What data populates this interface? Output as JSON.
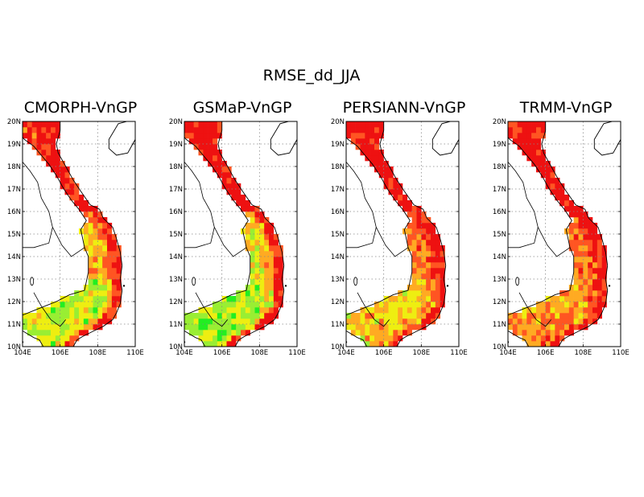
{
  "title": "RMSE_dd_JJA",
  "colors": {
    "low": "#22ee22",
    "low_mid": "#99ee33",
    "mid": "#eeee11",
    "mid_high": "#ffaa22",
    "high": "#ff5522",
    "very_high": "#ee1111",
    "coastline": "#000000",
    "grid": "#888888"
  },
  "axes": {
    "x_ticks": [
      "104E",
      "106E",
      "108E",
      "110E"
    ],
    "y_ticks": [
      "10N",
      "11N",
      "12N",
      "13N",
      "14N",
      "15N",
      "16N",
      "17N",
      "18N",
      "19N",
      "20N"
    ],
    "lon_range": [
      104,
      110
    ],
    "lat_range": [
      10,
      20
    ]
  },
  "panels": [
    {
      "title": "CMORPH-VnGP",
      "south_level": 1.5,
      "central_level": 2.6,
      "north_level": 4.4,
      "coast_level": 4.7
    },
    {
      "title": "GSMaP-VnGP",
      "south_level": 1.2,
      "central_level": 2.2,
      "north_level": 4.8,
      "coast_level": 5.0
    },
    {
      "title": "PERSIANN-VnGP",
      "south_level": 2.5,
      "central_level": 3.5,
      "north_level": 4.8,
      "coast_level": 4.6
    },
    {
      "title": "TRMM-VnGP",
      "south_level": 3.2,
      "central_level": 3.6,
      "north_level": 5.0,
      "coast_level": 5.0
    }
  ]
}
